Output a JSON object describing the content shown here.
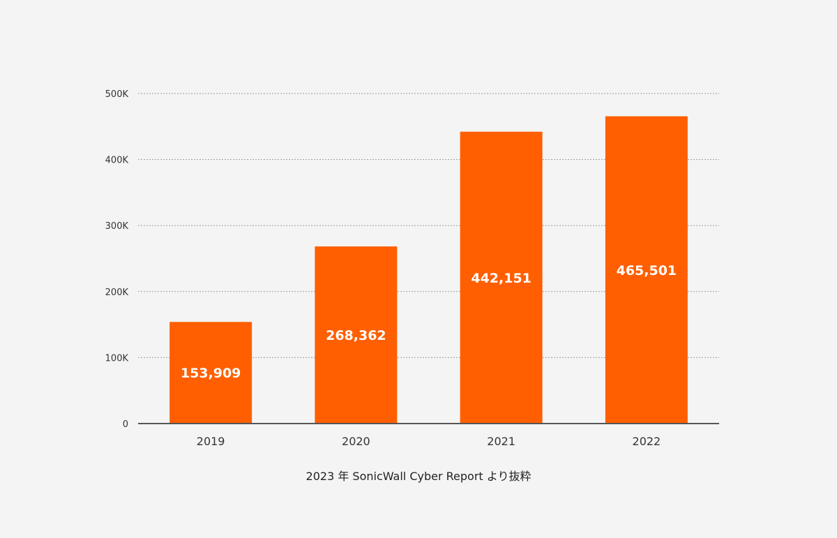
{
  "chart_data": {
    "type": "bar",
    "categories": [
      "2019",
      "2020",
      "2021",
      "2022"
    ],
    "values": [
      153909,
      268362,
      442151,
      465501
    ],
    "data_labels": [
      "153,909",
      "268,362",
      "442,151",
      "465,501"
    ],
    "ylim": [
      0,
      500000
    ],
    "yticks": [
      0,
      100000,
      200000,
      300000,
      400000,
      500000
    ],
    "ytick_labels": [
      "0",
      "100K",
      "200K",
      "300K",
      "400K",
      "500K"
    ],
    "grid": true,
    "title": "",
    "xlabel": "",
    "ylabel": "",
    "bar_color": "#ff5f00",
    "label_color": "#ffffff"
  },
  "source_note": "2023 年 SonicWall Cyber Report より抜粋"
}
